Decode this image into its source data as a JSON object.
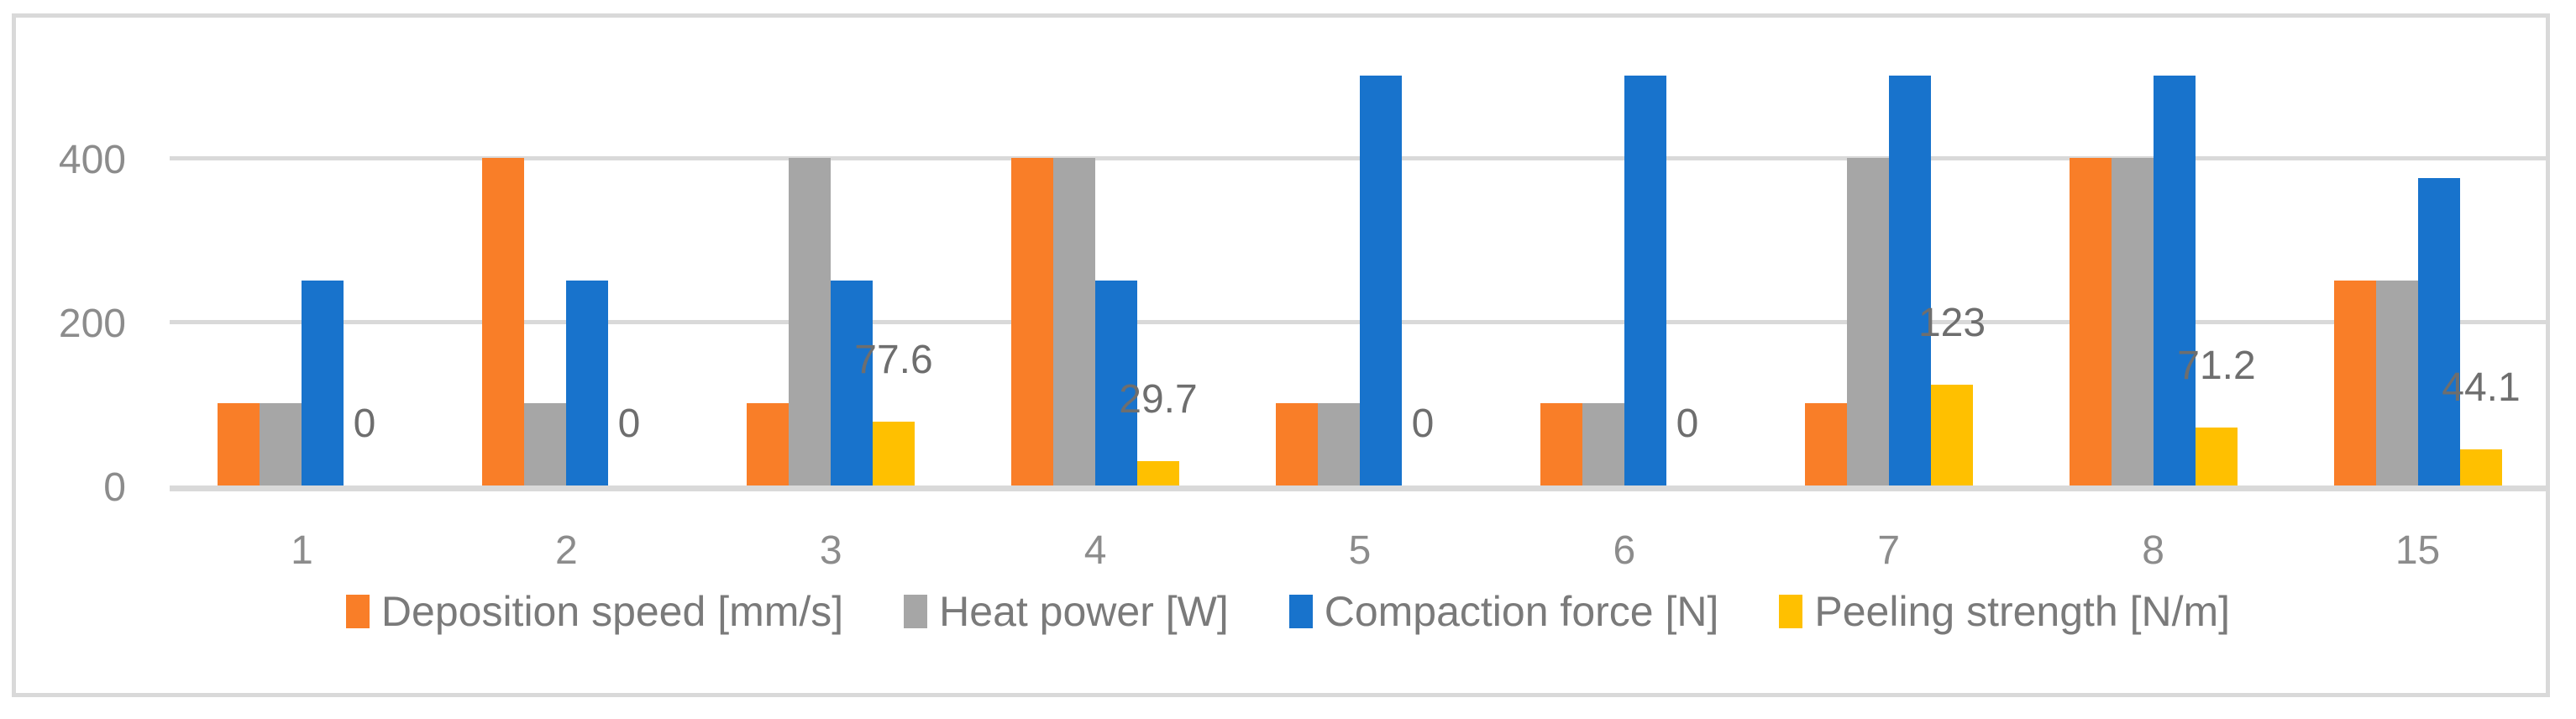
{
  "chart_data": {
    "type": "bar",
    "title": "",
    "xlabel": "",
    "ylabel": "",
    "categories": [
      "1",
      "2",
      "3",
      "4",
      "5",
      "6",
      "7",
      "8",
      "15"
    ],
    "series": [
      {
        "name": "Deposition speed [mm/s]",
        "color": "#F97E28",
        "values": [
          100,
          400,
          100,
          400,
          100,
          100,
          100,
          400,
          250
        ]
      },
      {
        "name": "Heat power [W]",
        "color": "#A6A6A6",
        "values": [
          100,
          100,
          400,
          400,
          100,
          100,
          400,
          400,
          250
        ]
      },
      {
        "name": "Compaction force [N]",
        "color": "#1873CC",
        "values": [
          250,
          250,
          250,
          250,
          500,
          500,
          500,
          500,
          375
        ]
      },
      {
        "name": "Peeling strength [N/m]",
        "color": "#FFC000",
        "values": [
          0,
          0,
          77.6,
          29.7,
          0,
          0,
          123,
          71.2,
          44.1
        ],
        "data_labels": [
          "0",
          "0",
          "77.6",
          "29.7",
          "0",
          "0",
          "123",
          "71.2",
          "44.1"
        ]
      }
    ],
    "yticks": [
      0,
      200,
      400
    ],
    "ytick_labels": [
      "0",
      "200",
      "400"
    ],
    "ylim": [
      0,
      576
    ],
    "grid": true,
    "legend_position": "bottom"
  },
  "colors": {
    "background": "#FFFFFF",
    "frame_border": "#D9D9D9",
    "gridline": "#D9D9D9",
    "axis_line": "#D9D9D9",
    "tick_text": "#8C8C8C",
    "data_label_text": "#6E6E6E",
    "legend_text": "#7A7A7A"
  }
}
